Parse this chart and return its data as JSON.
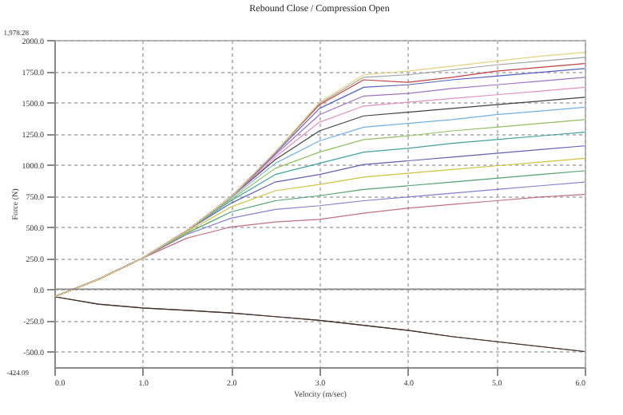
{
  "chart_data": {
    "type": "line",
    "title": "Rebound Close / Compression Open",
    "xlabel": "Velocity (m/sec)",
    "ylabel": "Force (N)",
    "x": [
      0,
      0.5,
      1,
      1.5,
      2,
      2.5,
      3,
      3.5,
      4,
      4.5,
      5,
      5.5,
      6
    ],
    "series": [
      {
        "color": "#e8d080",
        "values": [
          -60,
          80,
          250,
          470,
          740,
          1100,
          1500,
          1720,
          1750,
          1790,
          1830,
          1870,
          1900
        ]
      },
      {
        "color": "#a0a0a0",
        "values": [
          -60,
          80,
          250,
          470,
          740,
          1100,
          1490,
          1700,
          1720,
          1760,
          1800,
          1830,
          1860
        ]
      },
      {
        "color": "#c04040",
        "values": [
          -60,
          80,
          250,
          470,
          740,
          1100,
          1480,
          1680,
          1660,
          1700,
          1750,
          1780,
          1810
        ]
      },
      {
        "color": "#5060c0",
        "values": [
          -60,
          80,
          250,
          470,
          740,
          1090,
          1450,
          1620,
          1640,
          1680,
          1710,
          1740,
          1770
        ]
      },
      {
        "color": "#a070c0",
        "values": [
          -60,
          80,
          250,
          470,
          740,
          1080,
          1400,
          1550,
          1570,
          1610,
          1640,
          1670,
          1700
        ]
      },
      {
        "color": "#e090c0",
        "values": [
          -60,
          80,
          250,
          470,
          740,
          1060,
          1340,
          1470,
          1500,
          1530,
          1560,
          1590,
          1620
        ]
      },
      {
        "color": "#404040",
        "values": [
          -60,
          80,
          250,
          470,
          740,
          1040,
          1270,
          1390,
          1420,
          1450,
          1480,
          1510,
          1540
        ]
      },
      {
        "color": "#70b0e0",
        "values": [
          -60,
          80,
          250,
          470,
          730,
          1010,
          1190,
          1300,
          1330,
          1360,
          1400,
          1430,
          1460
        ]
      },
      {
        "color": "#90c060",
        "values": [
          -60,
          80,
          250,
          470,
          720,
          970,
          1100,
          1200,
          1230,
          1270,
          1300,
          1330,
          1360
        ]
      },
      {
        "color": "#40a0a0",
        "values": [
          -60,
          80,
          250,
          470,
          710,
          920,
          1010,
          1100,
          1130,
          1170,
          1200,
          1230,
          1260
        ]
      },
      {
        "color": "#6060b0",
        "values": [
          -60,
          80,
          250,
          470,
          690,
          860,
          920,
          1000,
          1030,
          1060,
          1090,
          1120,
          1150
        ]
      },
      {
        "color": "#d0c040",
        "values": [
          -60,
          80,
          250,
          460,
          660,
          790,
          840,
          900,
          930,
          960,
          990,
          1020,
          1050
        ]
      },
      {
        "color": "#50a070",
        "values": [
          -60,
          80,
          250,
          450,
          620,
          710,
          750,
          800,
          830,
          860,
          890,
          920,
          950
        ]
      },
      {
        "color": "#8080d0",
        "values": [
          -60,
          80,
          250,
          440,
          570,
          640,
          670,
          710,
          740,
          770,
          800,
          830,
          860
        ]
      },
      {
        "color": "#c07080",
        "values": [
          -60,
          80,
          250,
          410,
          500,
          540,
          560,
          610,
          650,
          680,
          710,
          740,
          760
        ]
      },
      {
        "color": "#303030",
        "values": [
          -60,
          -120,
          -150,
          -170,
          -190,
          -220,
          -250,
          -290,
          -330,
          -380,
          -420,
          -460,
          -500
        ]
      },
      {
        "color": "#b05030",
        "values": [
          -60,
          -120,
          -150,
          -170,
          -190,
          -220,
          -250,
          -290,
          -330,
          -380,
          -420,
          -460,
          -500
        ]
      }
    ],
    "xlim": [
      0,
      6
    ],
    "xticks": [
      {
        "value": 0,
        "label": "0.0"
      },
      {
        "value": 1,
        "label": "1.0"
      },
      {
        "value": 2,
        "label": "2.0"
      },
      {
        "value": 3,
        "label": "3.0"
      },
      {
        "value": 4,
        "label": "4.0"
      },
      {
        "value": 5,
        "label": "5.0"
      },
      {
        "value": 6,
        "label": "6.0"
      }
    ],
    "ylim": [
      -625,
      2000
    ],
    "yticks": [
      {
        "value": -500,
        "label": "-500.0"
      },
      {
        "value": -250,
        "label": "-250.0"
      },
      {
        "value": 0,
        "label": "0.0"
      },
      {
        "value": 250,
        "label": "250.0"
      },
      {
        "value": 500,
        "label": "500.0"
      },
      {
        "value": 750,
        "label": "750.0"
      },
      {
        "value": 1000,
        "label": "1000.0"
      },
      {
        "value": 1250,
        "label": "1250.0"
      },
      {
        "value": 1500,
        "label": "1500.0"
      },
      {
        "value": 1750,
        "label": "1750.0"
      },
      {
        "value": 2000,
        "label": "2000.0"
      }
    ],
    "grid": true,
    "legend": false,
    "marker": "none",
    "line_style": "solid",
    "ref_lines": [
      {
        "axis": "y",
        "value": 0,
        "color": "#888888"
      }
    ],
    "annotations": [
      "1,978.28",
      "-424.09"
    ]
  }
}
